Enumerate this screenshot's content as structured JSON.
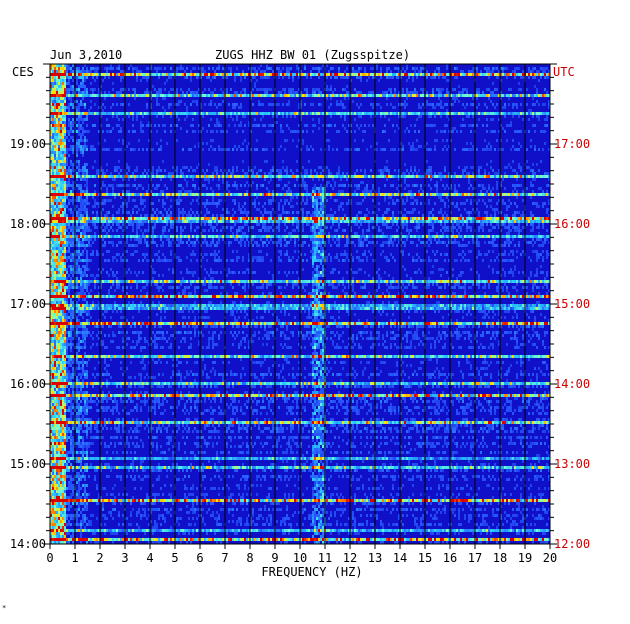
{
  "header": {
    "date": "Jun 3,2010",
    "station": "ZUGS HHZ BW 01 (Zugsspitze)"
  },
  "chart_data": {
    "type": "heatmap",
    "title": "ZUGS HHZ BW 01 (Zugsspitze)",
    "date": "Jun 3,2010",
    "xlabel": "FREQUENCY (HZ)",
    "left_axis_label": "CES",
    "right_axis_label": "UTC",
    "xlim": [
      0,
      20
    ],
    "x_ticks": [
      "0",
      "1",
      "2",
      "3",
      "4",
      "5",
      "6",
      "7",
      "8",
      "9",
      "10",
      "11",
      "12",
      "13",
      "14",
      "15",
      "16",
      "17",
      "18",
      "19",
      "20"
    ],
    "left_ticks": [
      "14:00",
      "15:00",
      "16:00",
      "17:00",
      "18:00",
      "19:00"
    ],
    "right_ticks": [
      "12:00",
      "13:00",
      "14:00",
      "15:00",
      "16:00",
      "17:00"
    ],
    "time_range_utc": [
      "12:00",
      "18:00"
    ],
    "colors": {
      "background": "#1010c8",
      "low": "#0a0aa8",
      "mid": "#2a6cff",
      "high": "#30e0ff",
      "peak": "#ffd000",
      "max": "#e00000",
      "utc_text": "#cc0000",
      "grid": "#000000"
    },
    "features": [
      {
        "freq_hz": [
          10.4,
          11.0
        ],
        "note": "persistent narrow-band energy"
      },
      {
        "freq_hz": [
          0.0,
          0.6
        ],
        "note": "strong low-frequency energy"
      }
    ]
  }
}
